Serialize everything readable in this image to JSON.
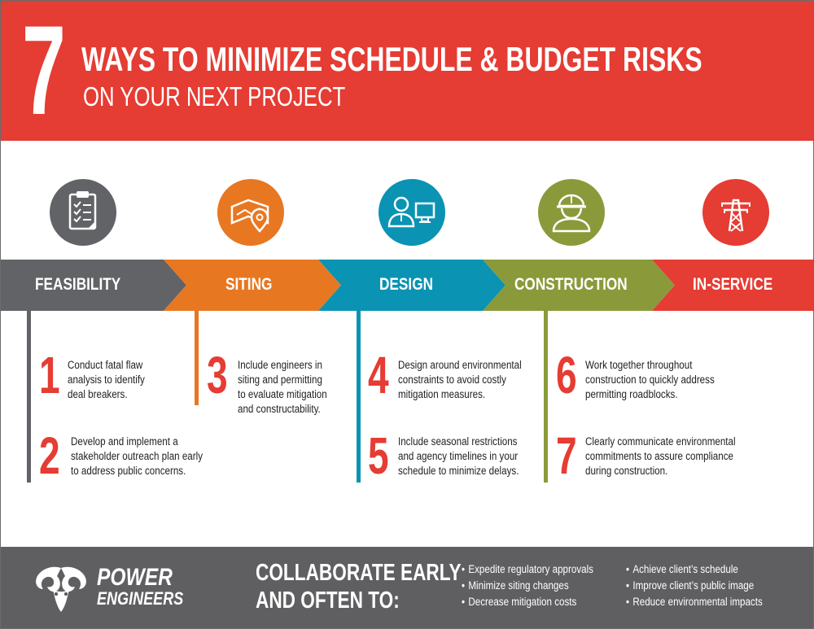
{
  "header": {
    "big_number": "7",
    "title_line1": "WAYS TO MINIMIZE SCHEDULE & BUDGET RISKS",
    "title_line2": "ON YOUR NEXT PROJECT"
  },
  "colors": {
    "red": "#e53c33",
    "gray": "#626366",
    "orange": "#e87722",
    "teal": "#0a93b3",
    "olive": "#8a9a3a",
    "footer": "#5f5f62"
  },
  "stages": [
    {
      "label": "FEASIBILITY",
      "icon": "clipboard-checklist-icon"
    },
    {
      "label": "SITING",
      "icon": "map-location-pin-icon"
    },
    {
      "label": "DESIGN",
      "icon": "engineer-computer-icon"
    },
    {
      "label": "CONSTRUCTION",
      "icon": "hard-hat-worker-icon"
    },
    {
      "label": "IN-SERVICE",
      "icon": "transmission-tower-icon"
    }
  ],
  "steps": [
    {
      "number": "1",
      "lines": [
        "Conduct fatal flaw",
        "analysis to identify",
        "deal breakers."
      ]
    },
    {
      "number": "2",
      "lines": [
        "Develop and implement a",
        "stakeholder outreach plan early",
        "to address public concerns."
      ]
    },
    {
      "number": "3",
      "lines": [
        "Include engineers in",
        "siting and permitting",
        "to evaluate mitigation",
        "and constructability."
      ]
    },
    {
      "number": "4",
      "lines": [
        "Design around environmental",
        "constraints to avoid costly",
        "mitigation measures."
      ]
    },
    {
      "number": "5",
      "lines": [
        "Include seasonal restrictions",
        "and agency timelines in your",
        "schedule to minimize delays."
      ]
    },
    {
      "number": "6",
      "lines": [
        "Work together throughout",
        "construction to quickly address",
        "permitting roadblocks."
      ]
    },
    {
      "number": "7",
      "lines": [
        "Clearly communicate environmental",
        "commitments to assure compliance",
        "during construction."
      ]
    }
  ],
  "footer": {
    "logo_line1": "POWER",
    "logo_line2": "ENGINEERS",
    "collab_line1": "COLLABORATE EARLY",
    "collab_line2": "AND OFTEN TO:",
    "bullets_left": [
      "Expedite regulatory approvals",
      "Minimize siting changes",
      "Decrease mitigation costs"
    ],
    "bullets_right": [
      "Achieve client’s schedule",
      "Improve client’s public image",
      "Reduce environmental impacts"
    ]
  }
}
